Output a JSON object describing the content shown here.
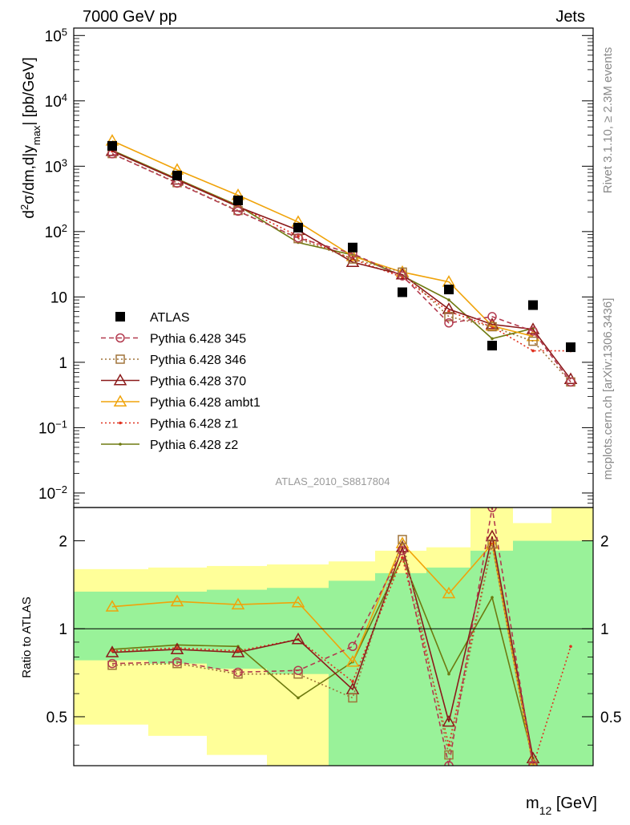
{
  "header": {
    "left": "7000 GeV pp",
    "right": "Jets"
  },
  "side_labels": {
    "rivet": "Rivet 3.1.10, ≥ 2.3M events",
    "mcplots": "mcplots.cern.ch [arXiv:1306.3436]"
  },
  "analysis_id": "ATLAS_2010_S8817804",
  "chart_data": [
    {
      "type": "line",
      "panel": "main",
      "yscale": "log",
      "ylim": [
        0.006,
        130000
      ],
      "ylabel": "d²σ/dm,d|y_max| [pb/GeV]",
      "yticks": [
        {
          "value": 100000,
          "base": "10",
          "exp": "5"
        },
        {
          "value": 10000,
          "base": "10",
          "exp": "4"
        },
        {
          "value": 1000,
          "base": "10",
          "exp": "3"
        },
        {
          "value": 100,
          "base": "10",
          "exp": "2"
        },
        {
          "value": 10,
          "base": "10",
          "exp": ""
        },
        {
          "value": 1,
          "base": "1",
          "exp": ""
        },
        {
          "value": 0.1,
          "base": "10",
          "exp": "−1"
        },
        {
          "value": 0.01,
          "base": "10",
          "exp": "−2"
        }
      ],
      "bins": [
        0,
        1,
        2,
        3,
        4,
        5,
        6,
        7,
        8,
        9
      ],
      "series": [
        {
          "name": "ATLAS",
          "color": "#000000",
          "marker": "square-filled",
          "line": "none",
          "values": [
            2050,
            720,
            300,
            115,
            57,
            11.8,
            13,
            1.8,
            7.5,
            1.7
          ]
        },
        {
          "name": "Pythia 6.428 345",
          "color": "#b33b4f",
          "marker": "circle-open",
          "line": "dashed",
          "values": [
            1550,
            550,
            205,
            80,
            46,
            21,
            4,
            5,
            3,
            0.5
          ]
        },
        {
          "name": "Pythia 6.428 346",
          "color": "#a0743a",
          "marker": "square-open",
          "line": "dotted",
          "values": [
            1560,
            560,
            210,
            78,
            38,
            24,
            5,
            3.5,
            2.1,
            0.5
          ]
        },
        {
          "name": "Pythia 6.428 370",
          "color": "#8b1a1a",
          "marker": "triangle-open",
          "line": "solid",
          "values": [
            1700,
            620,
            240,
            105,
            34,
            22,
            6.5,
            3.8,
            3.2,
            0.55
          ]
        },
        {
          "name": "Pythia 6.428 ambt1",
          "color": "#f0a30a",
          "marker": "triangle-open",
          "line": "solid",
          "values": [
            2450,
            880,
            360,
            140,
            42,
            24,
            17,
            3.6,
            2.5,
            null
          ]
        },
        {
          "name": "Pythia 6.428 z1",
          "color": "#e0301e",
          "marker": "dot",
          "line": "dotted",
          "values": [
            1700,
            630,
            245,
            85,
            38,
            20,
            6,
            3.5,
            1.5,
            1.5
          ]
        },
        {
          "name": "Pythia 6.428 z2",
          "color": "#6e7a10",
          "marker": "dot",
          "line": "solid",
          "values": [
            1750,
            640,
            250,
            68,
            44,
            21,
            9,
            2.3,
            3.3,
            null
          ]
        }
      ]
    },
    {
      "type": "line",
      "panel": "ratio",
      "yscale": "log",
      "ylim": [
        0.34,
        2.6
      ],
      "ylabel": "Ratio to ATLAS",
      "xlabel": "m₁₂ [GeV]",
      "yticks": [
        {
          "value": 0.5,
          "label": "0.5"
        },
        {
          "value": 1,
          "label": "1"
        },
        {
          "value": 2,
          "label": "2"
        }
      ],
      "bins": [
        0,
        1,
        2,
        3,
        4,
        5,
        6,
        7,
        8,
        9
      ],
      "band_outer": [
        [
          0.47,
          1.6
        ],
        [
          0.43,
          1.62
        ],
        [
          0.37,
          1.64
        ],
        [
          0.33,
          1.66
        ],
        [
          0.33,
          1.7
        ],
        [
          0.33,
          1.85
        ],
        [
          0.33,
          1.9
        ],
        [
          0.33,
          2.6
        ],
        [
          0.33,
          2.3
        ],
        [
          0.33,
          2.6
        ]
      ],
      "band_inner": [
        [
          0.78,
          1.34
        ],
        [
          0.76,
          1.34
        ],
        [
          0.73,
          1.36
        ],
        [
          0.7,
          1.38
        ],
        [
          0.33,
          1.46
        ],
        [
          0.33,
          1.55
        ],
        [
          0.33,
          1.62
        ],
        [
          0.33,
          1.85
        ],
        [
          0.33,
          2.0
        ],
        [
          0.33,
          2.0
        ]
      ],
      "series": [
        {
          "name": "Pythia 6.428 345",
          "color": "#b33b4f",
          "marker": "circle-open",
          "line": "dashed",
          "values": [
            0.76,
            0.77,
            0.71,
            0.72,
            0.87,
            1.85,
            0.3,
            2.7,
            0.3,
            null
          ]
        },
        {
          "name": "Pythia 6.428 346",
          "color": "#a0743a",
          "marker": "square-open",
          "line": "dotted",
          "values": [
            0.75,
            0.76,
            0.7,
            0.7,
            0.58,
            2.02,
            0.37,
            1.95,
            0.3,
            null
          ]
        },
        {
          "name": "Pythia 6.428 370",
          "color": "#8b1a1a",
          "marker": "triangle-open",
          "line": "solid",
          "values": [
            0.83,
            0.85,
            0.83,
            0.92,
            0.62,
            1.9,
            0.48,
            2.07,
            0.36,
            null
          ]
        },
        {
          "name": "Pythia 6.428 ambt1",
          "color": "#f0a30a",
          "marker": "triangle-open",
          "line": "solid",
          "values": [
            1.19,
            1.24,
            1.21,
            1.23,
            0.77,
            1.96,
            1.32,
            1.95,
            0.3,
            null
          ]
        },
        {
          "name": "Pythia 6.428 z1",
          "color": "#e0301e",
          "marker": "dot",
          "line": "dotted",
          "values": [
            0.84,
            0.86,
            0.84,
            0.92,
            0.66,
            1.75,
            0.4,
            1.95,
            0.3,
            0.87
          ]
        },
        {
          "name": "Pythia 6.428 z2",
          "color": "#6e7a10",
          "marker": "dot",
          "line": "solid",
          "values": [
            0.85,
            0.88,
            0.87,
            0.58,
            0.77,
            1.75,
            0.7,
            1.28,
            0.36,
            null
          ]
        }
      ]
    }
  ]
}
